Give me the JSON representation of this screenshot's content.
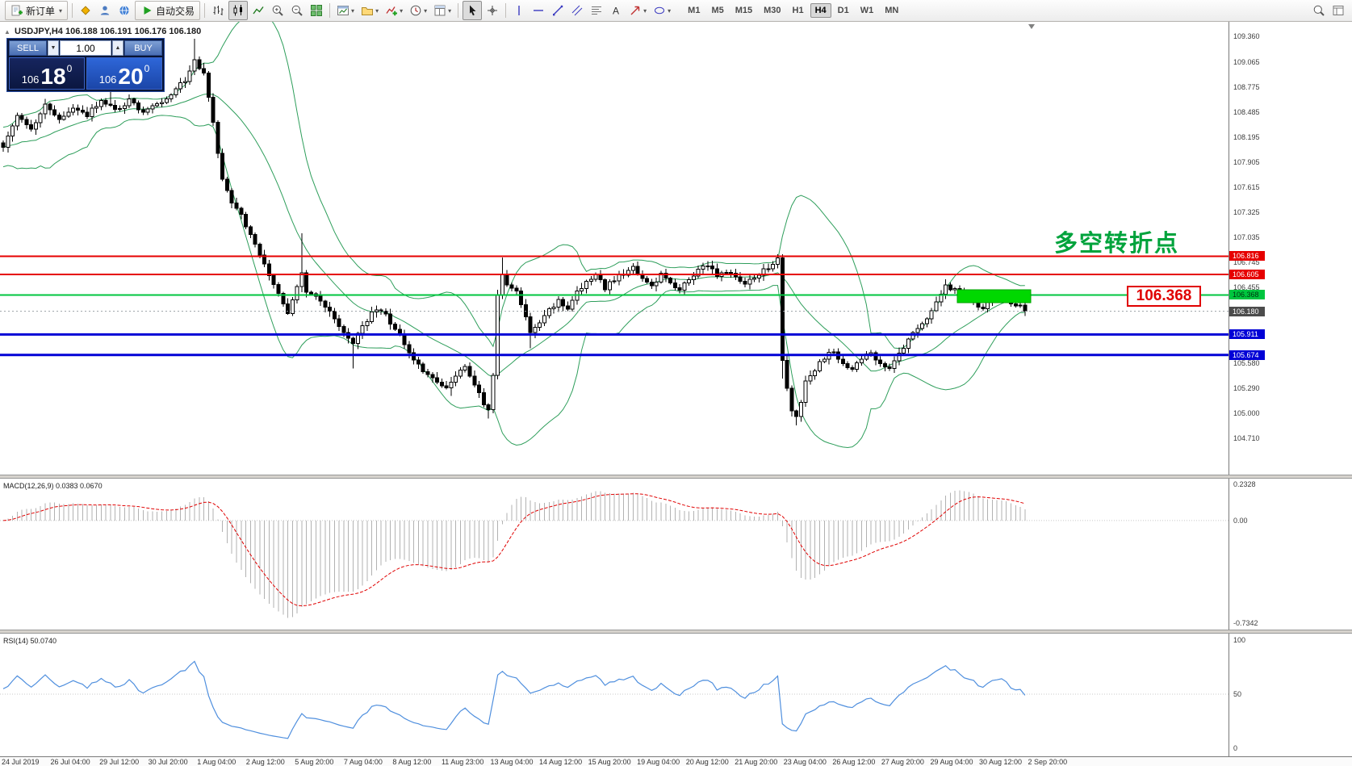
{
  "toolbar": {
    "new_order_label": "新订单",
    "autotrade_label": "自动交易",
    "timeframes": [
      "M1",
      "M5",
      "M15",
      "M30",
      "H1",
      "H4",
      "D1",
      "W1",
      "MN"
    ],
    "active_timeframe": "H4"
  },
  "chart": {
    "symbol_info": "USDJPY,H4  106.188 106.191 106.176 106.180",
    "trade_panel": {
      "sell_label": "SELL",
      "buy_label": "BUY",
      "volume": "1.00",
      "spin_down": "▼",
      "spin_up": "▲",
      "sell_price": {
        "big": "106",
        "pips": "18",
        "pt": "0"
      },
      "buy_price": {
        "big": "106",
        "pips": "20",
        "pt": "0"
      }
    },
    "annotations": {
      "turning_point_text": "多空转折点",
      "price_callout": "106.368"
    },
    "levels": [
      {
        "label": "106.816",
        "value": 106.816,
        "color": "#e60000",
        "text": "#ffffff",
        "thickness": 2
      },
      {
        "label": "106.605",
        "value": 106.605,
        "color": "#e60000",
        "text": "#ffffff",
        "thickness": 2
      },
      {
        "label": "106.368",
        "value": 106.368,
        "color": "#00c53f",
        "text": "#00330d",
        "thickness": 2
      },
      {
        "label": "106.180",
        "value": 106.18,
        "color": "#4c4c4c",
        "text": "#ffffff",
        "thickness": 1,
        "style": "dotted",
        "role": "current-price"
      },
      {
        "label": "105.911",
        "value": 105.911,
        "color": "#0202d6",
        "text": "#ffffff",
        "thickness": 3
      },
      {
        "label": "105.674",
        "value": 105.674,
        "color": "#0202d6",
        "text": "#ffffff",
        "thickness": 3
      }
    ],
    "price_scale": [
      "109.360",
      "109.065",
      "108.775",
      "108.485",
      "108.195",
      "107.905",
      "107.615",
      "107.325",
      "107.035",
      "106.745",
      "106.455",
      "105.580",
      "105.290",
      "105.000",
      "104.710"
    ],
    "y_axis": {
      "min": 104.71,
      "max": 109.36,
      "step": 0.29
    }
  },
  "macd_panel": {
    "label": "MACD(12,26,9) 0.0383 0.0670",
    "scale_top": "0.2328",
    "scale_zero": "0.00",
    "scale_bottom": "-0.7342"
  },
  "rsi_panel": {
    "label": "RSI(14) 50.0740",
    "scale_top": "100",
    "scale_mid": "50",
    "scale_bottom": "0"
  },
  "time_axis": [
    "24 Jul 2019",
    "26 Jul 04:00",
    "29 Jul 12:00",
    "30 Jul 20:00",
    "1 Aug 04:00",
    "2 Aug 12:00",
    "5 Aug 20:00",
    "7 Aug 04:00",
    "8 Aug 12:00",
    "11 Aug 23:00",
    "13 Aug 04:00",
    "14 Aug 12:00",
    "15 Aug 20:00",
    "19 Aug 04:00",
    "20 Aug 12:00",
    "21 Aug 20:00",
    "23 Aug 04:00",
    "26 Aug 12:00",
    "27 Aug 20:00",
    "29 Aug 04:00",
    "30 Aug 12:00",
    "2 Sep 20:00"
  ],
  "chart_data": {
    "type": "candlestick",
    "symbol": "USDJPY",
    "timeframe": "H4",
    "current_ohlc": {
      "open": 106.188,
      "high": 106.191,
      "low": 106.176,
      "close": 106.18
    },
    "bid": 106.18,
    "ask": 106.2,
    "horizontal_levels": [
      106.816,
      106.605,
      106.368,
      105.911,
      105.674
    ],
    "indicators": {
      "bollinger": {
        "period": 20,
        "deviation": 2,
        "color": "#2e9e5b"
      },
      "macd": {
        "fast": 12,
        "slow": 26,
        "signal": 9,
        "current_values": [
          0.0383,
          0.067
        ],
        "scale": [
          -0.7342,
          0.2328
        ]
      },
      "rsi": {
        "period": 14,
        "current_value": 50.074,
        "scale": [
          0,
          100
        ]
      }
    },
    "y_axis": {
      "min": 104.71,
      "max": 109.36,
      "step": 0.29
    },
    "candle_count": 220,
    "close_anchors": [
      [
        0,
        108.1
      ],
      [
        3,
        108.45
      ],
      [
        6,
        108.3
      ],
      [
        9,
        108.55
      ],
      [
        12,
        108.38
      ],
      [
        15,
        108.55
      ],
      [
        18,
        108.45
      ],
      [
        21,
        108.62
      ],
      [
        24,
        108.5
      ],
      [
        27,
        108.62
      ],
      [
        30,
        108.48
      ],
      [
        33,
        108.56
      ],
      [
        36,
        108.7
      ],
      [
        39,
        108.85
      ],
      [
        41,
        109.1
      ],
      [
        43,
        108.92
      ],
      [
        45,
        108.35
      ],
      [
        47,
        107.7
      ],
      [
        49,
        107.45
      ],
      [
        51,
        107.28
      ],
      [
        53,
        107.05
      ],
      [
        55,
        106.85
      ],
      [
        57,
        106.6
      ],
      [
        59,
        106.4
      ],
      [
        61,
        106.15
      ],
      [
        63,
        106.45
      ],
      [
        64,
        106.62
      ],
      [
        65,
        106.42
      ],
      [
        67,
        106.35
      ],
      [
        69,
        106.25
      ],
      [
        71,
        106.1
      ],
      [
        73,
        105.95
      ],
      [
        75,
        105.82
      ],
      [
        77,
        106.0
      ],
      [
        79,
        106.15
      ],
      [
        81,
        106.2
      ],
      [
        83,
        106.05
      ],
      [
        85,
        105.9
      ],
      [
        87,
        105.7
      ],
      [
        89,
        105.55
      ],
      [
        91,
        105.45
      ],
      [
        93,
        105.38
      ],
      [
        95,
        105.3
      ],
      [
        97,
        105.45
      ],
      [
        99,
        105.55
      ],
      [
        101,
        105.35
      ],
      [
        103,
        105.12
      ],
      [
        104,
        105.02
      ],
      [
        105,
        105.45
      ],
      [
        106,
        106.35
      ],
      [
        107,
        106.6
      ],
      [
        108,
        106.5
      ],
      [
        110,
        106.4
      ],
      [
        112,
        106.1
      ],
      [
        113,
        105.92
      ],
      [
        115,
        106.05
      ],
      [
        117,
        106.2
      ],
      [
        119,
        106.3
      ],
      [
        121,
        106.2
      ],
      [
        123,
        106.4
      ],
      [
        125,
        106.5
      ],
      [
        127,
        106.6
      ],
      [
        129,
        106.45
      ],
      [
        131,
        106.55
      ],
      [
        133,
        106.62
      ],
      [
        135,
        106.68
      ],
      [
        137,
        106.55
      ],
      [
        139,
        106.48
      ],
      [
        141,
        106.6
      ],
      [
        143,
        106.5
      ],
      [
        145,
        106.42
      ],
      [
        147,
        106.55
      ],
      [
        149,
        106.65
      ],
      [
        151,
        106.72
      ],
      [
        153,
        106.58
      ],
      [
        155,
        106.65
      ],
      [
        157,
        106.6
      ],
      [
        159,
        106.5
      ],
      [
        161,
        106.58
      ],
      [
        163,
        106.65
      ],
      [
        165,
        106.72
      ],
      [
        166,
        106.78
      ],
      [
        167,
        105.6
      ],
      [
        168,
        105.3
      ],
      [
        169,
        105.05
      ],
      [
        170,
        104.95
      ],
      [
        171,
        105.15
      ],
      [
        172,
        105.35
      ],
      [
        174,
        105.5
      ],
      [
        176,
        105.65
      ],
      [
        178,
        105.72
      ],
      [
        180,
        105.58
      ],
      [
        182,
        105.5
      ],
      [
        184,
        105.62
      ],
      [
        186,
        105.7
      ],
      [
        188,
        105.58
      ],
      [
        190,
        105.52
      ],
      [
        192,
        105.7
      ],
      [
        194,
        105.85
      ],
      [
        196,
        106.0
      ],
      [
        198,
        106.1
      ],
      [
        200,
        106.3
      ],
      [
        202,
        106.48
      ],
      [
        204,
        106.42
      ],
      [
        206,
        106.35
      ],
      [
        208,
        106.28
      ],
      [
        210,
        106.22
      ],
      [
        212,
        106.32
      ],
      [
        214,
        106.38
      ],
      [
        216,
        106.28
      ],
      [
        218,
        106.24
      ],
      [
        219,
        106.18
      ]
    ],
    "wick_overrides": [
      [
        23,
        "h",
        108.92
      ],
      [
        41,
        "h",
        109.33
      ],
      [
        64,
        "h",
        107.08
      ],
      [
        75,
        "l",
        105.52
      ],
      [
        96,
        "l",
        105.2
      ],
      [
        104,
        "l",
        104.94
      ],
      [
        107,
        "h",
        106.8
      ],
      [
        113,
        "l",
        105.75
      ],
      [
        167,
        "l",
        105.4
      ],
      [
        170,
        "l",
        104.86
      ],
      [
        202,
        "h",
        106.55
      ]
    ]
  }
}
